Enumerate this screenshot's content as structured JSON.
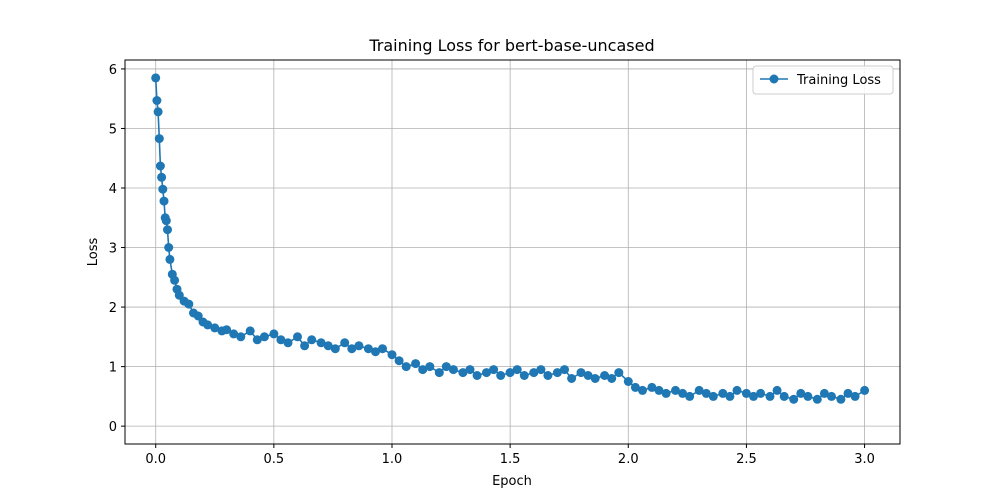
{
  "chart_data": {
    "type": "line",
    "title": "Training Loss for bert-base-uncased",
    "xlabel": "Epoch",
    "ylabel": "Loss",
    "xlim": [
      -0.13,
      3.15
    ],
    "ylim": [
      -0.3,
      6.15
    ],
    "xticks": [
      0.0,
      0.5,
      1.0,
      1.5,
      2.0,
      2.5,
      3.0
    ],
    "xtick_labels": [
      "0.0",
      "0.5",
      "1.0",
      "1.5",
      "2.0",
      "2.5",
      "3.0"
    ],
    "yticks": [
      0,
      1,
      2,
      3,
      4,
      5,
      6
    ],
    "ytick_labels": [
      "0",
      "1",
      "2",
      "3",
      "4",
      "5",
      "6"
    ],
    "grid": true,
    "legend_position": "top-right",
    "color": "#1f77b4",
    "series": [
      {
        "name": "Training Loss",
        "marker": "circle",
        "x": [
          0.0,
          0.005,
          0.01,
          0.015,
          0.02,
          0.025,
          0.03,
          0.035,
          0.04,
          0.045,
          0.05,
          0.055,
          0.06,
          0.07,
          0.08,
          0.09,
          0.1,
          0.12,
          0.14,
          0.16,
          0.18,
          0.2,
          0.22,
          0.25,
          0.28,
          0.3,
          0.33,
          0.36,
          0.4,
          0.43,
          0.46,
          0.5,
          0.53,
          0.56,
          0.6,
          0.63,
          0.66,
          0.7,
          0.73,
          0.76,
          0.8,
          0.83,
          0.86,
          0.9,
          0.93,
          0.96,
          1.0,
          1.03,
          1.06,
          1.1,
          1.13,
          1.16,
          1.2,
          1.23,
          1.26,
          1.3,
          1.33,
          1.36,
          1.4,
          1.43,
          1.46,
          1.5,
          1.53,
          1.56,
          1.6,
          1.63,
          1.66,
          1.7,
          1.73,
          1.76,
          1.8,
          1.83,
          1.86,
          1.9,
          1.93,
          1.96,
          2.0,
          2.03,
          2.06,
          2.1,
          2.13,
          2.16,
          2.2,
          2.23,
          2.26,
          2.3,
          2.33,
          2.36,
          2.4,
          2.43,
          2.46,
          2.5,
          2.53,
          2.56,
          2.6,
          2.63,
          2.66,
          2.7,
          2.73,
          2.76,
          2.8,
          2.83,
          2.86,
          2.9,
          2.93,
          2.96,
          3.0
        ],
        "values": [
          5.85,
          5.47,
          5.28,
          4.83,
          4.37,
          4.18,
          3.98,
          3.78,
          3.5,
          3.45,
          3.3,
          3.0,
          2.8,
          2.55,
          2.45,
          2.3,
          2.2,
          2.1,
          2.05,
          1.9,
          1.85,
          1.75,
          1.7,
          1.65,
          1.6,
          1.62,
          1.55,
          1.5,
          1.6,
          1.45,
          1.5,
          1.55,
          1.45,
          1.4,
          1.5,
          1.35,
          1.45,
          1.4,
          1.35,
          1.3,
          1.4,
          1.3,
          1.35,
          1.3,
          1.25,
          1.3,
          1.2,
          1.1,
          1.0,
          1.05,
          0.95,
          1.0,
          0.9,
          1.0,
          0.95,
          0.9,
          0.95,
          0.85,
          0.9,
          0.95,
          0.85,
          0.9,
          0.95,
          0.85,
          0.9,
          0.95,
          0.85,
          0.9,
          0.95,
          0.8,
          0.9,
          0.85,
          0.8,
          0.85,
          0.8,
          0.9,
          0.75,
          0.65,
          0.6,
          0.65,
          0.6,
          0.55,
          0.6,
          0.55,
          0.5,
          0.6,
          0.55,
          0.5,
          0.55,
          0.5,
          0.6,
          0.55,
          0.5,
          0.55,
          0.5,
          0.6,
          0.5,
          0.45,
          0.55,
          0.5,
          0.45,
          0.55,
          0.5,
          0.45,
          0.55,
          0.5,
          0.6
        ]
      }
    ]
  }
}
